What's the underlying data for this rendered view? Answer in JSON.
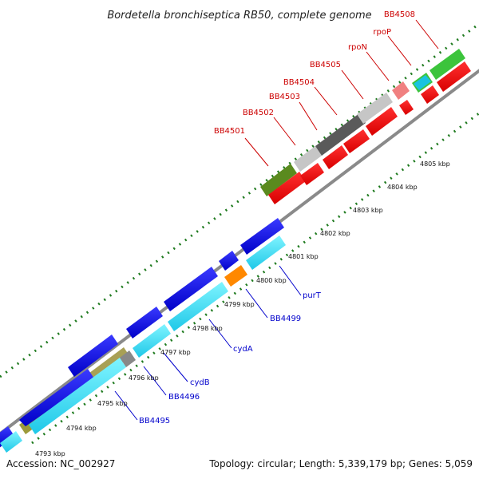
{
  "title": "Bordetella bronchiseptica RB50, complete genome",
  "footer": {
    "accession": "Accession: NC_002927",
    "summary": "Topology: circular; Length: 5,339,179 bp; Genes: 5,059"
  },
  "colors": {
    "top_labels": "#cc0000",
    "bottom_labels": "#0000cc",
    "backbone": "#888888",
    "ticks": "#1e7a1e"
  },
  "top_labels": [
    "BB4501",
    "BB4502",
    "BB4503",
    "BB4504",
    "BB4505",
    "rpoN",
    "rpoP",
    "BB4508"
  ],
  "bottom_labels": [
    "BB4495",
    "BB4496",
    "cydB",
    "cydA",
    "BB4499",
    "purT"
  ],
  "scale_labels": [
    "4793 kbp",
    "4794 kbp",
    "4795 kbp",
    "4796 kbp",
    "4797 kbp",
    "4798 kbp",
    "4799 kbp",
    "4800 kbp",
    "4801 kbp",
    "4802 kbp",
    "4803 kbp",
    "4804 kbp",
    "4805 kbp"
  ]
}
